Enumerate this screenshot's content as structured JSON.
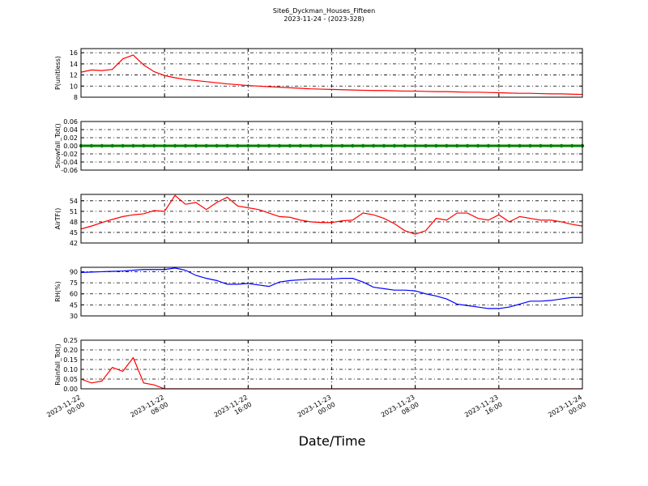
{
  "title": "Site6_Dyckman_Houses_Fifteen",
  "subtitle": "2023-11-24 - (2023-328)",
  "x_label": "Date/Time",
  "x": [
    "2023-11-22 00:00",
    "2023-11-22 01:00",
    "2023-11-22 02:00",
    "2023-11-22 03:00",
    "2023-11-22 04:00",
    "2023-11-22 05:00",
    "2023-11-22 06:00",
    "2023-11-22 07:00",
    "2023-11-22 08:00",
    "2023-11-22 09:00",
    "2023-11-22 10:00",
    "2023-11-22 11:00",
    "2023-11-22 12:00",
    "2023-11-22 13:00",
    "2023-11-22 14:00",
    "2023-11-22 15:00",
    "2023-11-22 16:00",
    "2023-11-22 17:00",
    "2023-11-22 18:00",
    "2023-11-22 19:00",
    "2023-11-22 20:00",
    "2023-11-22 21:00",
    "2023-11-22 22:00",
    "2023-11-22 23:00",
    "2023-11-23 00:00",
    "2023-11-23 01:00",
    "2023-11-23 02:00",
    "2023-11-23 03:00",
    "2023-11-23 04:00",
    "2023-11-23 05:00",
    "2023-11-23 06:00",
    "2023-11-23 07:00",
    "2023-11-23 08:00",
    "2023-11-23 09:00",
    "2023-11-23 10:00",
    "2023-11-23 11:00",
    "2023-11-23 12:00",
    "2023-11-23 13:00",
    "2023-11-23 14:00",
    "2023-11-23 15:00",
    "2023-11-23 16:00",
    "2023-11-23 17:00",
    "2023-11-23 18:00",
    "2023-11-23 19:00",
    "2023-11-23 20:00",
    "2023-11-23 21:00",
    "2023-11-23 22:00",
    "2023-11-23 23:00",
    "2023-11-24 00:00"
  ],
  "xlim": [
    "2023-11-22 00:00",
    "2023-11-24 00:00"
  ],
  "xticks": [
    {
      "value": "2023-11-22 00:00",
      "label": "2023-11-22\n00:00"
    },
    {
      "value": "2023-11-22 08:00",
      "label": "2023-11-22\n08:00"
    },
    {
      "value": "2023-11-22 16:00",
      "label": "2023-11-22\n16:00"
    },
    {
      "value": "2023-11-23 00:00",
      "label": "2023-11-23\n00:00"
    },
    {
      "value": "2023-11-23 08:00",
      "label": "2023-11-23\n08:00"
    },
    {
      "value": "2023-11-23 16:00",
      "label": "2023-11-23\n16:00"
    },
    {
      "value": "2023-11-24 00:00",
      "label": "2023-11-24\n00:00"
    }
  ],
  "grid": true,
  "chart_data": [
    {
      "type": "line",
      "y_label": "P(unitless)",
      "color": "#ff0000",
      "marker": false,
      "ylim": [
        8,
        16.75
      ],
      "yticks": [
        8,
        10,
        12,
        14,
        16
      ],
      "values": [
        12.5,
        12.9,
        12.8,
        13.0,
        14.9,
        15.6,
        13.8,
        12.6,
        11.9,
        11.5,
        11.2,
        11.0,
        10.8,
        10.6,
        10.4,
        10.25,
        10.1,
        10.0,
        9.9,
        9.8,
        9.7,
        9.6,
        9.5,
        9.45,
        9.4,
        9.35,
        9.3,
        9.25,
        9.2,
        9.2,
        9.15,
        9.1,
        9.1,
        9.05,
        9.0,
        9.0,
        8.95,
        8.9,
        8.9,
        8.85,
        8.8,
        8.75,
        8.7,
        8.7,
        8.65,
        8.6,
        8.6,
        8.55,
        8.5
      ]
    },
    {
      "type": "line",
      "y_label": "Snowfall_Tot()",
      "color": "#008000",
      "marker": true,
      "ylim": [
        -0.06,
        0.06
      ],
      "yticks": [
        -0.06,
        -0.04,
        -0.02,
        {
          "value": 0,
          "label": "0.00"
        },
        0.02,
        0.04,
        0.06
      ],
      "values": [
        0,
        0,
        0,
        0,
        0,
        0,
        0,
        0,
        0,
        0,
        0,
        0,
        0,
        0,
        0,
        0,
        0,
        0,
        0,
        0,
        0,
        0,
        0,
        0,
        0,
        0,
        0,
        0,
        0,
        0,
        0,
        0,
        0,
        0,
        0,
        0,
        0,
        0,
        0,
        0,
        0,
        0,
        0,
        0,
        0,
        0,
        0,
        0,
        0
      ]
    },
    {
      "type": "line",
      "y_label": "AirTF()",
      "color": "#ff0000",
      "marker": false,
      "ylim": [
        42,
        55.8
      ],
      "yticks": [
        42,
        45,
        48,
        51,
        54
      ],
      "values": [
        46,
        46.8,
        47.8,
        48.7,
        49.5,
        50,
        50.3,
        51.2,
        51,
        55.5,
        53,
        53.5,
        51.5,
        53.5,
        55,
        52.5,
        52,
        51.5,
        50.5,
        49.5,
        49.3,
        48.5,
        48,
        47.8,
        47.8,
        48.3,
        48.5,
        50.5,
        50,
        49,
        47.5,
        45.5,
        44.5,
        45.5,
        49,
        48.5,
        50.5,
        50.5,
        49,
        48.5,
        50,
        48,
        49.5,
        49,
        48.5,
        48.5,
        48,
        47.3,
        46.8
      ]
    },
    {
      "type": "line",
      "y_label": "RH(%)",
      "color": "#0000ff",
      "marker": false,
      "ylim": [
        30,
        96
      ],
      "yticks": [
        30,
        45,
        60,
        75,
        90
      ],
      "values": [
        89,
        89.5,
        90,
        90.5,
        91,
        92,
        93,
        93,
        93,
        95,
        92,
        85,
        81,
        78,
        73,
        73,
        74,
        72,
        70,
        76,
        78,
        79,
        80,
        80,
        80,
        81,
        81,
        76,
        69,
        67,
        65,
        65,
        64,
        60,
        57,
        53,
        46,
        44,
        42,
        40,
        40,
        42,
        46,
        50,
        50,
        51,
        53,
        55,
        55
      ]
    },
    {
      "type": "line",
      "y_label": "Rainfall_Tot()",
      "color": "#ff0000",
      "marker": false,
      "ylim": [
        0,
        0.25
      ],
      "yticks": [
        {
          "value": 0,
          "label": "0.00"
        },
        0.05,
        {
          "value": 0.1,
          "label": "0.10"
        },
        0.15,
        {
          "value": 0.2,
          "label": "0.20"
        },
        0.25
      ],
      "values": [
        0.05,
        0.03,
        0.04,
        0.11,
        0.09,
        0.16,
        0.03,
        0.02,
        0,
        0,
        0,
        0,
        0,
        0,
        0,
        0,
        0,
        0,
        0,
        0,
        0,
        0,
        0,
        0,
        0,
        0,
        0,
        0,
        0,
        0,
        0,
        0,
        0,
        0,
        0,
        0,
        0,
        0,
        0,
        0,
        0,
        0,
        0,
        0,
        0,
        0,
        0,
        0,
        0
      ]
    }
  ]
}
